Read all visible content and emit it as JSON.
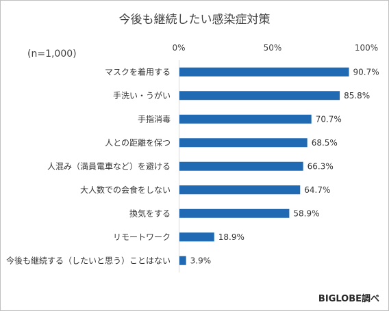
{
  "title": "今後も継続したい感染症対策",
  "sample_note": "(n=1,000)",
  "source_note": "BIGLOBE調べ",
  "chart_data": {
    "type": "bar",
    "orientation": "horizontal",
    "title": "今後も継続したい感染症対策",
    "xlim": [
      0,
      100
    ],
    "x_ticks": [
      "0%",
      "50%",
      "100%"
    ],
    "x_axis_position": "top",
    "grid": false,
    "bar_color": "#1f6ab3",
    "value_suffix": "%",
    "categories": [
      "マスクを着用する",
      "手洗い・うがい",
      "手指消毒",
      "人との距離を保つ",
      "人混み（満員電車など）を避ける",
      "大人数での会食をしない",
      "換気をする",
      "リモートワーク",
      "今後も継続する（したいと思う）ことはない"
    ],
    "values": [
      90.7,
      85.8,
      70.7,
      68.5,
      66.3,
      64.7,
      58.9,
      18.9,
      3.9
    ]
  }
}
